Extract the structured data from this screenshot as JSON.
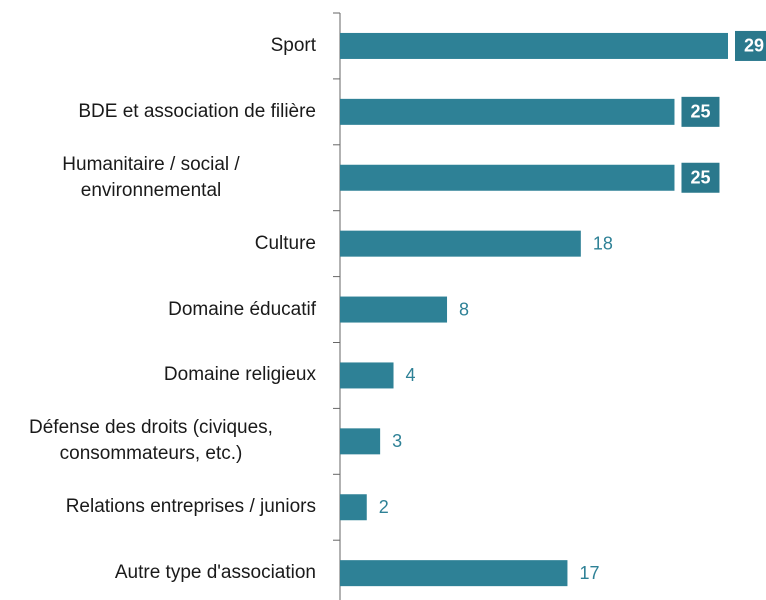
{
  "chart_data": {
    "type": "barh",
    "categories": [
      "Sport",
      "BDE et association de filière",
      "Humanitaire / social /\nenvironnemental",
      "Culture",
      "Domaine éducatif",
      "Domaine religieux",
      "Défense des droits (civiques,\nconsommateurs, etc.)",
      "Relations entreprises / juniors",
      "Autre type d'association"
    ],
    "values": [
      29,
      25,
      25,
      18,
      8,
      4,
      3,
      2,
      17
    ],
    "color": "#2e8196"
  }
}
